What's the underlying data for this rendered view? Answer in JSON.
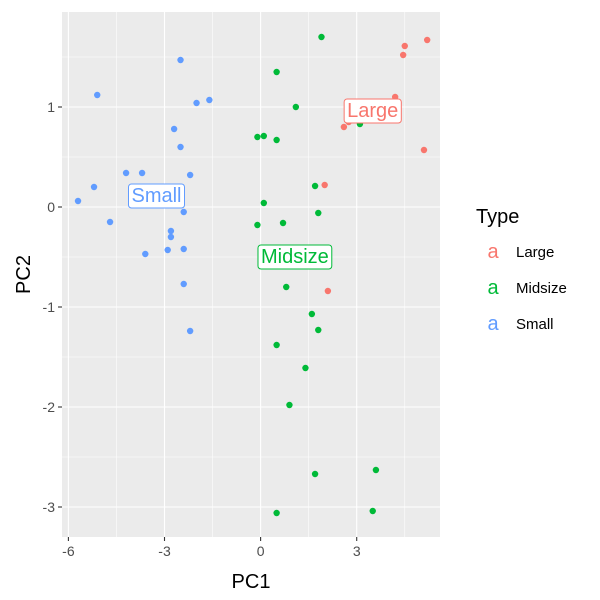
{
  "chart_data": {
    "type": "scatter",
    "xlabel": "PC1",
    "ylabel": "PC2",
    "xlim": [
      -6.2,
      5.6
    ],
    "ylim": [
      -3.3,
      1.95
    ],
    "xticks": [
      -6,
      -3,
      0,
      3
    ],
    "xtick_labels": [
      "-6",
      "-3",
      "0",
      "3"
    ],
    "yticks": [
      -3,
      -2,
      -1,
      0,
      1
    ],
    "ytick_labels": [
      "-3",
      "-2",
      "-1",
      "0",
      "1"
    ],
    "grid": true,
    "legend": {
      "title": "Type",
      "placement": "right",
      "key_glyph": "a",
      "entries": [
        "Large",
        "Midsize",
        "Small"
      ]
    },
    "colors": {
      "Large": "#F8766D",
      "Midsize": "#00BA38",
      "Small": "#619CFF",
      "panel": "#EBEBEB",
      "grid": "#FFFFFF"
    },
    "cluster_labels": [
      {
        "text": "Large",
        "x": 3.5,
        "y": 0.96,
        "series": "Large"
      },
      {
        "text": "Midsize",
        "x": 1.07,
        "y": -0.5,
        "series": "Midsize"
      },
      {
        "text": "Small",
        "x": -3.25,
        "y": 0.11,
        "series": "Small"
      }
    ],
    "series": [
      {
        "name": "Large",
        "points": [
          [
            5.2,
            1.67
          ],
          [
            4.5,
            1.61
          ],
          [
            4.45,
            1.52
          ],
          [
            2.6,
            0.8
          ],
          [
            2.75,
            0.85
          ],
          [
            5.1,
            0.57
          ],
          [
            2.0,
            0.22
          ],
          [
            2.1,
            -0.84
          ],
          [
            4.2,
            1.1
          ]
        ]
      },
      {
        "name": "Midsize",
        "points": [
          [
            1.9,
            1.7
          ],
          [
            0.5,
            1.35
          ],
          [
            1.1,
            1.0
          ],
          [
            0.1,
            0.71
          ],
          [
            -0.1,
            0.7
          ],
          [
            0.5,
            0.67
          ],
          [
            3.1,
            0.83
          ],
          [
            1.7,
            0.21
          ],
          [
            0.1,
            0.04
          ],
          [
            1.8,
            -0.06
          ],
          [
            -0.1,
            -0.18
          ],
          [
            0.7,
            -0.16
          ],
          [
            0.8,
            -0.8
          ],
          [
            1.6,
            -1.07
          ],
          [
            1.8,
            -1.23
          ],
          [
            0.5,
            -1.38
          ],
          [
            1.4,
            -1.61
          ],
          [
            0.9,
            -1.98
          ],
          [
            1.7,
            -2.67
          ],
          [
            3.6,
            -2.63
          ],
          [
            0.5,
            -3.06
          ],
          [
            3.5,
            -3.04
          ]
        ]
      },
      {
        "name": "Small",
        "points": [
          [
            -2.5,
            1.47
          ],
          [
            -5.1,
            1.12
          ],
          [
            -1.6,
            1.07
          ],
          [
            -2.0,
            1.04
          ],
          [
            -2.7,
            0.78
          ],
          [
            -2.5,
            0.6
          ],
          [
            -4.2,
            0.34
          ],
          [
            -3.7,
            0.34
          ],
          [
            -2.2,
            0.32
          ],
          [
            -5.2,
            0.2
          ],
          [
            -5.7,
            0.06
          ],
          [
            -2.4,
            -0.05
          ],
          [
            -4.7,
            -0.15
          ],
          [
            -2.8,
            -0.24
          ],
          [
            -2.8,
            -0.3
          ],
          [
            -2.4,
            -0.42
          ],
          [
            -2.9,
            -0.43
          ],
          [
            -3.6,
            -0.47
          ],
          [
            -2.4,
            -0.77
          ],
          [
            -2.2,
            -1.24
          ]
        ]
      }
    ]
  }
}
